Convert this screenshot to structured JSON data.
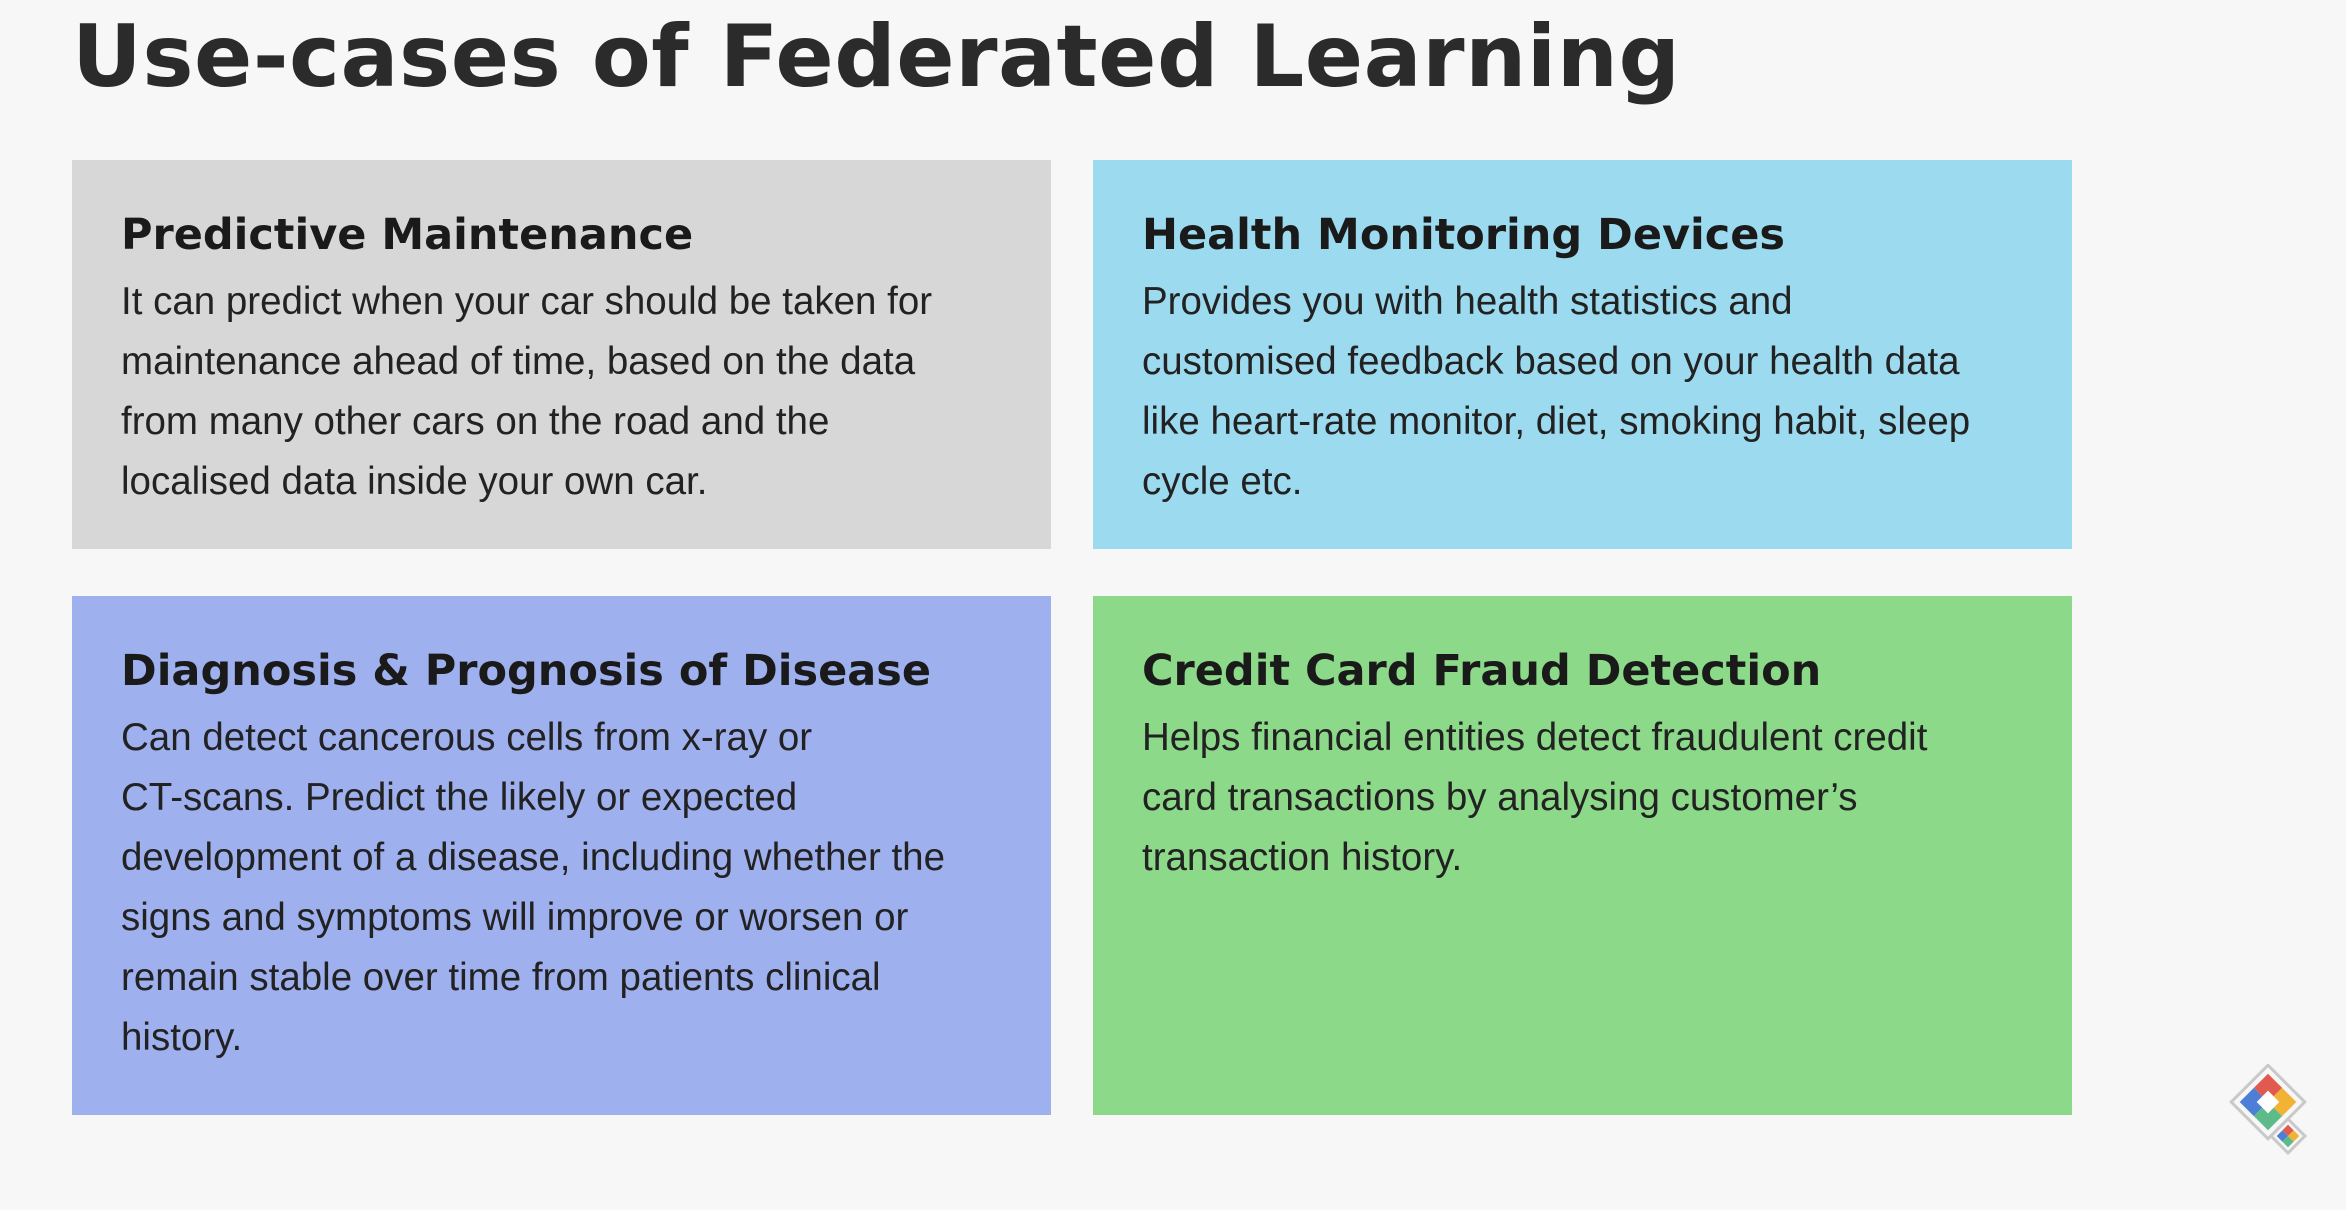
{
  "title": "Use-cases of Federated Learning",
  "colors": {
    "background": "#f7f7f7",
    "card_gray": "#d7d7d7",
    "card_blue": "#9cdaef",
    "card_purple": "#9fb0ee",
    "card_green": "#8dd98a"
  },
  "cards": [
    {
      "title": "Predictive Maintenance",
      "lines": [
        "It can predict when your car should be taken for",
        "maintenance ahead of time, based on the data",
        "from many other cars on the road and the",
        "localised data inside your own car."
      ],
      "color": "#d7d7d7"
    },
    {
      "title": "Health Monitoring Devices",
      "lines": [
        "Provides you with health statistics and",
        "customised feedback based on your health data",
        "like heart-rate monitor, diet, smoking habit, sleep",
        "cycle etc."
      ],
      "color": "#9cdaef"
    },
    {
      "title": "Diagnosis & Prognosis of Disease",
      "lines": [
        "Can detect cancerous cells from x-ray or",
        "CT-scans. Predict the likely or expected",
        "development of a disease, including whether the",
        "signs and symptoms will improve or worsen or",
        "remain stable over time from patients clinical",
        "history."
      ],
      "color": "#9fb0ee"
    },
    {
      "title": "Credit Card Fraud Detection",
      "lines": [
        "Helps financial entities detect fraudulent credit",
        "card transactions by analysing customer’s",
        "transaction history."
      ],
      "color": "#8dd98a"
    }
  ],
  "logo": {
    "icon": "diamond-logo-icon"
  }
}
